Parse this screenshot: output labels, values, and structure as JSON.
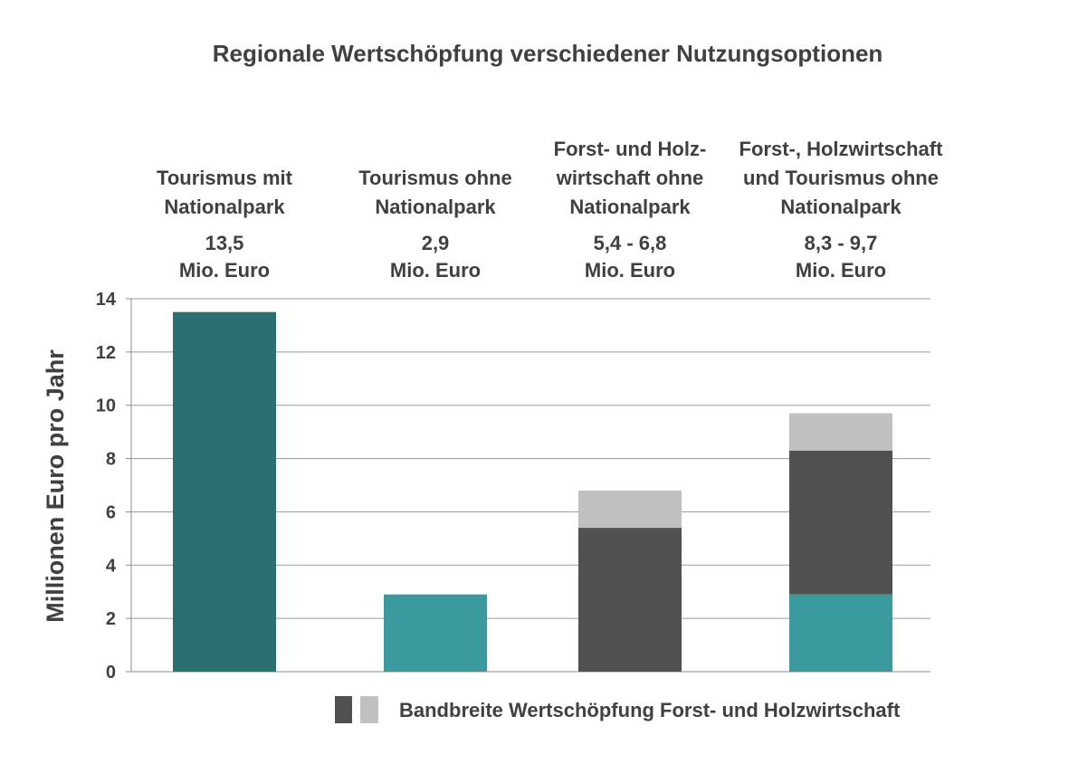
{
  "chart_data": {
    "type": "bar",
    "title": "Regionale Wertschöpfung verschiedener Nutzungsoptionen",
    "ylabel": "Millionen Euro pro Jahr",
    "xlabel": "",
    "ylim": [
      0,
      14
    ],
    "yticks": [
      0,
      2,
      4,
      6,
      8,
      10,
      12,
      14
    ],
    "grid": true,
    "categories": [
      {
        "label_lines": [
          "Tourismus mit",
          "Nationalpark"
        ],
        "value_lines": [
          "13,5",
          "Mio. Euro"
        ],
        "segments": [
          {
            "from": 0,
            "to": 13.5,
            "color": "#2a7070"
          }
        ]
      },
      {
        "label_lines": [
          "Tourismus ohne",
          "Nationalpark"
        ],
        "value_lines": [
          "2,9",
          "Mio. Euro"
        ],
        "segments": [
          {
            "from": 0,
            "to": 2.9,
            "color": "#3a9a9e"
          }
        ]
      },
      {
        "label_lines": [
          "Forst- und Holz-",
          "wirtschaft ohne",
          "Nationalpark"
        ],
        "value_lines": [
          "5,4 - 6,8",
          "Mio. Euro"
        ],
        "segments": [
          {
            "from": 0,
            "to": 5.4,
            "color": "#505050"
          },
          {
            "from": 5.4,
            "to": 6.8,
            "color": "#c0c0c0"
          }
        ]
      },
      {
        "label_lines": [
          "Forst-, Holzwirtschaft",
          "und Tourismus ohne",
          "Nationalpark"
        ],
        "value_lines": [
          "8,3 - 9,7",
          "Mio. Euro"
        ],
        "segments": [
          {
            "from": 0,
            "to": 2.9,
            "color": "#3a9a9e"
          },
          {
            "from": 2.9,
            "to": 8.3,
            "color": "#505050"
          },
          {
            "from": 8.3,
            "to": 9.7,
            "color": "#c0c0c0"
          }
        ]
      }
    ],
    "legend": {
      "placement": "bottom-right",
      "text": "Bandbreite Wertschöpfung Forst- und Holzwirtschaft",
      "swatches": [
        "#505050",
        "#c0c0c0"
      ]
    }
  }
}
